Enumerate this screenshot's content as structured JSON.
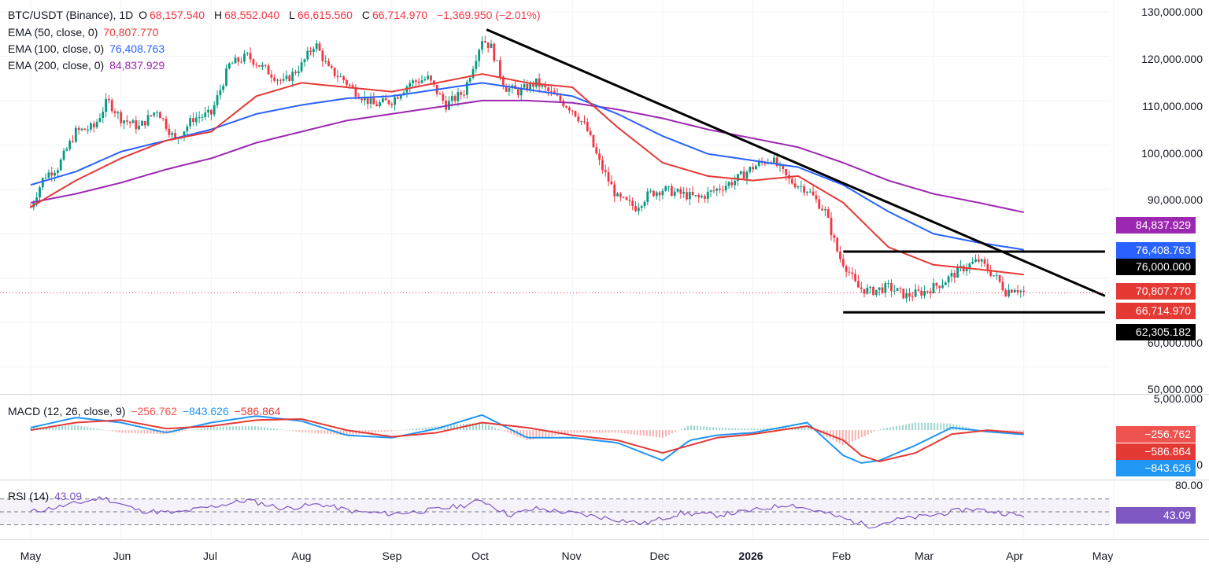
{
  "header": {
    "symbol": "BTC/USDT (Binance), 1D",
    "o_label": "O",
    "o_value": "68,157.540",
    "h_label": "H",
    "h_value": "68,552.040",
    "l_label": "L",
    "l_value": "66,615.560",
    "c_label": "C",
    "c_value": "66,714.970",
    "change": "−1,369.950 (−2.01%)"
  },
  "ema_legend": [
    {
      "label": "EMA (50, close, 0)",
      "value": "70,807.770",
      "color": "#e53935"
    },
    {
      "label": "EMA (100, close, 0)",
      "value": "76,408.763",
      "color": "#2962ff"
    },
    {
      "label": "EMA (200, close, 0)",
      "value": "84,837.929",
      "color": "#9c27b0"
    }
  ],
  "macd_legend": {
    "label": "MACD (12, 26, close, 9)",
    "hist": "−256.762",
    "macd": "−843.626",
    "signal": "−586.864"
  },
  "rsi_legend": {
    "label": "RSI (14)",
    "value": "43.09"
  },
  "price_axis_labels": [
    "130,000.000",
    "120,000.000",
    "110,000.000",
    "100,000.000",
    "90,000.000",
    "60,000.000",
    "50,000.000"
  ],
  "macd_axis_labels": [
    "5,000.000",
    "0"
  ],
  "rsi_axis_labels": [
    "80.00"
  ],
  "price_tags": [
    {
      "text": "84,837.929",
      "color": "#9c27b0"
    },
    {
      "text": "76,408.763",
      "color": "#2962ff"
    },
    {
      "text": "76,000.000",
      "color": "#000000"
    },
    {
      "text": "70,807.770",
      "color": "#e53935"
    },
    {
      "text": "66,714.970",
      "color": "#e53935"
    },
    {
      "text": "62,305.182",
      "color": "#000000"
    }
  ],
  "macd_tags": [
    {
      "text": "−256.762",
      "color": "#ef5350"
    },
    {
      "text": "−586.864",
      "color": "#e53935"
    },
    {
      "text": "−843.626",
      "color": "#2196f3"
    }
  ],
  "rsi_tag": {
    "text": "43.09",
    "color": "#7e57c2"
  },
  "x_labels": [
    {
      "text": "May",
      "bold": false
    },
    {
      "text": "Jun",
      "bold": false
    },
    {
      "text": "Jul",
      "bold": false
    },
    {
      "text": "Aug",
      "bold": false
    },
    {
      "text": "Sep",
      "bold": false
    },
    {
      "text": "Oct",
      "bold": false
    },
    {
      "text": "Nov",
      "bold": false
    },
    {
      "text": "Dec",
      "bold": false
    },
    {
      "text": "2026",
      "bold": true
    },
    {
      "text": "Feb",
      "bold": false
    },
    {
      "text": "Mar",
      "bold": false
    },
    {
      "text": "Apr",
      "bold": false
    },
    {
      "text": "May",
      "bold": false
    }
  ],
  "chart_data": {
    "type": "line",
    "x_unit": "month index (0 = May 2025 start)",
    "price_ylim": [
      45000,
      130000
    ],
    "close_path": {
      "x": [
        0,
        0.15,
        0.3,
        0.5,
        0.7,
        0.85,
        1.0,
        1.2,
        1.4,
        1.6,
        1.8,
        2.0,
        2.2,
        2.4,
        2.6,
        2.8,
        3.0,
        3.15,
        3.3,
        3.45,
        3.6,
        3.8,
        4.0,
        4.2,
        4.4,
        4.6,
        4.8,
        5.0,
        5.1,
        5.25,
        5.4,
        5.6,
        5.8,
        6.0,
        6.15,
        6.3,
        6.5,
        6.7,
        6.85,
        7.0,
        7.2,
        7.4,
        7.6,
        7.8,
        8.0,
        8.2,
        8.4,
        8.6,
        8.8,
        8.95,
        9.05,
        9.15,
        9.3,
        9.5,
        9.7,
        9.9,
        10.1,
        10.3,
        10.5,
        10.7,
        10.8,
        10.9,
        11.0
      ],
      "close": [
        86000,
        93000,
        95000,
        103000,
        104000,
        110000,
        106000,
        104000,
        108000,
        101000,
        106000,
        107000,
        118000,
        120000,
        117000,
        114000,
        118000,
        123000,
        117000,
        115000,
        112000,
        109000,
        110000,
        114000,
        115000,
        109000,
        112000,
        124000,
        122000,
        113000,
        112000,
        114000,
        111000,
        108000,
        104000,
        96000,
        88000,
        86000,
        89000,
        90000,
        89000,
        88000,
        90000,
        92000,
        95000,
        97000,
        92000,
        90000,
        85000,
        75000,
        72000,
        68000,
        67000,
        68000,
        66000,
        67000,
        69000,
        72000,
        74000,
        70000,
        67000,
        68000,
        66715
      ]
    },
    "ema50": {
      "x": [
        0,
        0.5,
        1.0,
        1.5,
        2.0,
        2.5,
        3.0,
        3.5,
        4.0,
        4.5,
        5.0,
        5.5,
        6.0,
        6.5,
        7.0,
        7.5,
        8.0,
        8.5,
        9.0,
        9.5,
        10.0,
        10.5,
        11.0
      ],
      "y": [
        86000,
        92000,
        97000,
        101000,
        103000,
        111000,
        114000,
        113000,
        112000,
        114000,
        116000,
        114000,
        113000,
        104000,
        96000,
        93000,
        92000,
        93000,
        87000,
        77000,
        73000,
        72000,
        70808
      ]
    },
    "ema100": {
      "x": [
        0,
        0.5,
        1.0,
        1.5,
        2.0,
        2.5,
        3.0,
        3.5,
        4.0,
        4.5,
        5.0,
        5.5,
        6.0,
        6.5,
        7.0,
        7.5,
        8.0,
        8.5,
        9.0,
        9.5,
        10.0,
        10.5,
        11.0
      ],
      "y": [
        91000,
        94000,
        98500,
        101000,
        103500,
        107000,
        109000,
        110500,
        111000,
        112500,
        114000,
        112500,
        111000,
        107000,
        102000,
        98000,
        96500,
        95000,
        91000,
        85000,
        80000,
        78000,
        76409
      ]
    },
    "ema200": {
      "x": [
        0,
        0.5,
        1.0,
        1.5,
        2.0,
        2.5,
        3.0,
        3.5,
        4.0,
        4.5,
        5.0,
        5.5,
        6.0,
        6.5,
        7.0,
        7.5,
        8.0,
        8.5,
        9.0,
        9.5,
        10.0,
        10.5,
        11.0
      ],
      "y": [
        87000,
        89000,
        91500,
        94500,
        97000,
        100500,
        103000,
        105500,
        107000,
        108500,
        110000,
        110000,
        109500,
        108000,
        106000,
        103500,
        101500,
        99500,
        96000,
        92000,
        89000,
        87000,
        84838
      ]
    },
    "trendline": {
      "x": [
        5.05,
        11.9
      ],
      "y": [
        126000,
        66000
      ]
    },
    "resistance": {
      "x": [
        9.0,
        11.9
      ],
      "y": 76000
    },
    "support": {
      "x": [
        9.0,
        11.9
      ],
      "y": 62305.182
    },
    "current_price": 66714.97,
    "macd": {
      "ylim": [
        -9000,
        5000
      ],
      "x": [
        0,
        0.5,
        1.0,
        1.5,
        2.0,
        2.5,
        3.0,
        3.5,
        4.0,
        4.5,
        5.0,
        5.5,
        6.0,
        6.5,
        7.0,
        7.3,
        7.6,
        8.0,
        8.3,
        8.6,
        9.0,
        9.2,
        9.4,
        9.8,
        10.2,
        10.6,
        11.0
      ],
      "macd": [
        500,
        2500,
        1500,
        -500,
        1500,
        2800,
        1800,
        -1000,
        -1500,
        300,
        3000,
        -1500,
        -1500,
        -2500,
        -6000,
        -2000,
        -1000,
        -500,
        500,
        1500,
        -5000,
        -6500,
        -6000,
        -3000,
        500,
        -300,
        -844
      ],
      "signal": [
        0,
        1500,
        2000,
        300,
        800,
        2000,
        2200,
        0,
        -1300,
        -500,
        1500,
        500,
        -1000,
        -2000,
        -4500,
        -3000,
        -1500,
        -800,
        0,
        800,
        -2000,
        -5000,
        -6200,
        -4500,
        -800,
        0,
        -587
      ]
    },
    "rsi": {
      "ylim": [
        10,
        95
      ],
      "overbought": 70,
      "middle": 50,
      "oversold": 30,
      "x": [
        0,
        0.4,
        0.8,
        1.2,
        1.6,
        2.0,
        2.4,
        2.8,
        3.2,
        3.6,
        4.0,
        4.4,
        4.8,
        5.0,
        5.3,
        5.6,
        6.0,
        6.4,
        6.8,
        7.2,
        7.6,
        8.0,
        8.4,
        8.8,
        9.0,
        9.3,
        9.6,
        10.0,
        10.4,
        10.8,
        11.0
      ],
      "y": [
        50,
        60,
        72,
        52,
        48,
        58,
        68,
        55,
        62,
        50,
        47,
        52,
        60,
        68,
        45,
        55,
        48,
        40,
        32,
        48,
        45,
        52,
        62,
        48,
        40,
        28,
        38,
        45,
        55,
        48,
        43
      ]
    }
  }
}
